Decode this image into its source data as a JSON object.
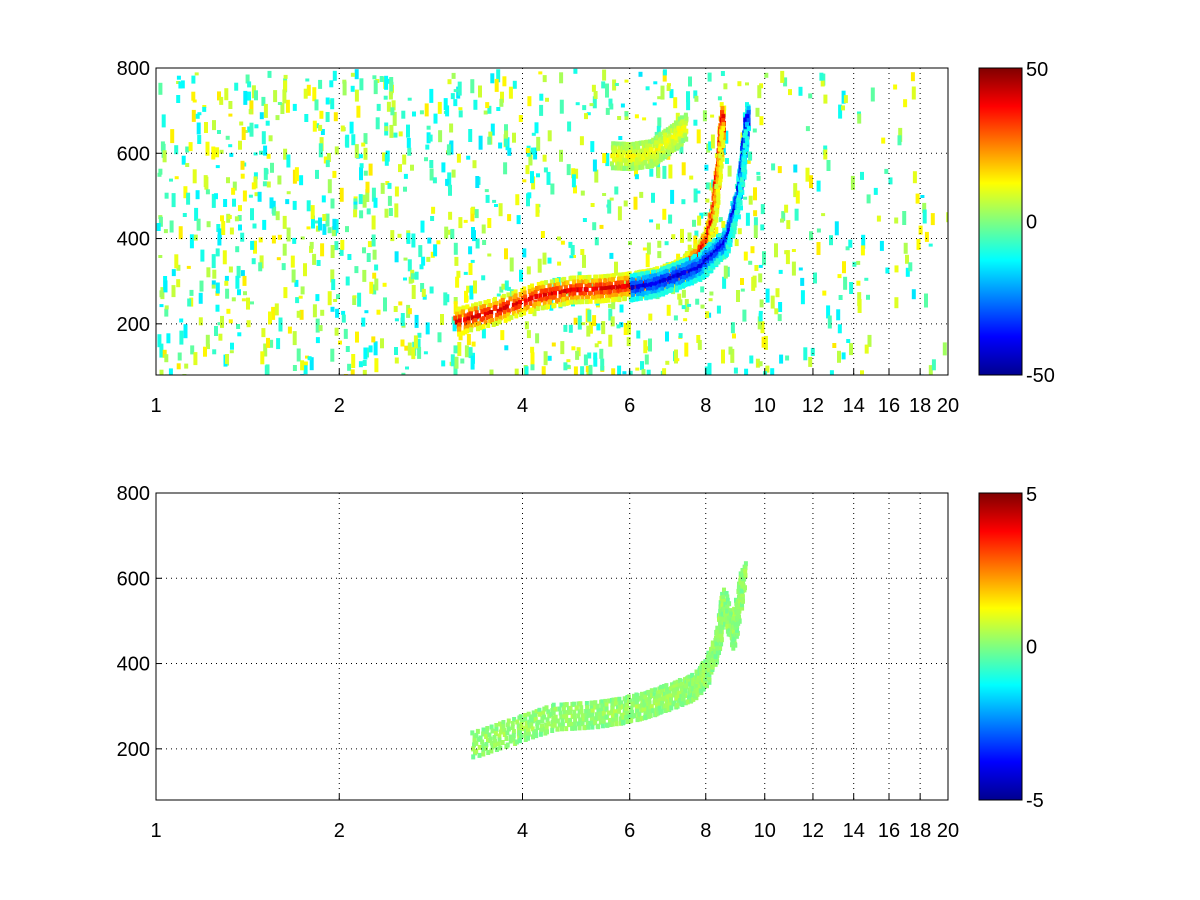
{
  "chart_data": [
    {
      "type": "heatmap",
      "title": "",
      "xlabel": "",
      "ylabel": "",
      "xscale": "log",
      "xlim": [
        1,
        20
      ],
      "ylim": [
        80,
        800
      ],
      "x_ticks": [
        1,
        2,
        4,
        6,
        8,
        10,
        12,
        14,
        16,
        18,
        20
      ],
      "y_ticks": [
        200,
        400,
        600,
        800
      ],
      "grid": true,
      "colormap": "jet",
      "colorbar": {
        "range": [
          -50,
          50
        ],
        "ticks": [
          50,
          0,
          -50
        ]
      },
      "features": [
        {
          "name": "positive-ridge",
          "color_value": 40,
          "x": [
            3.1,
            3.6,
            4.2,
            4.8,
            5.4,
            6.0,
            6.6,
            7.2,
            7.7,
            8.0,
            8.2,
            8.3,
            8.4,
            8.5
          ],
          "y": [
            210,
            235,
            270,
            285,
            288,
            295,
            305,
            325,
            360,
            400,
            470,
            540,
            620,
            700
          ]
        },
        {
          "name": "negative-ridge",
          "color_value": -40,
          "x": [
            6.0,
            6.6,
            7.2,
            7.8,
            8.2,
            8.6,
            8.8,
            9.0,
            9.1,
            9.2,
            9.3
          ],
          "y": [
            290,
            300,
            320,
            340,
            370,
            400,
            450,
            500,
            560,
            620,
            700
          ]
        },
        {
          "name": "weak-band",
          "color_value": 12,
          "x": [
            5.6,
            6.0,
            6.5,
            7.0,
            7.4
          ],
          "y": [
            600,
            598,
            605,
            640,
            670
          ]
        }
      ]
    },
    {
      "type": "heatmap",
      "title": "",
      "xlabel": "",
      "ylabel": "",
      "xscale": "log",
      "xlim": [
        1,
        20
      ],
      "ylim": [
        80,
        800
      ],
      "x_ticks": [
        1,
        2,
        4,
        6,
        8,
        10,
        12,
        14,
        16,
        18,
        20
      ],
      "y_ticks": [
        200,
        400,
        600,
        800
      ],
      "grid": true,
      "colormap": "jet",
      "colorbar": {
        "range": [
          -5,
          5
        ],
        "ticks": [
          5,
          0,
          -5
        ]
      },
      "features": [
        {
          "name": "near-zero-ridge",
          "color_value": 0.3,
          "x": [
            3.3,
            3.9,
            4.5,
            5.2,
            5.8,
            6.4,
            7.0,
            7.6,
            8.0,
            8.3,
            8.5,
            8.8,
            9.0,
            9.2
          ],
          "y": [
            215,
            250,
            280,
            285,
            295,
            310,
            330,
            350,
            390,
            450,
            550,
            470,
            540,
            620
          ]
        }
      ]
    }
  ]
}
